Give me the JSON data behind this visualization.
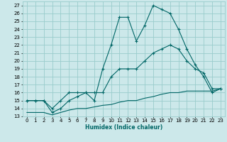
{
  "xlabel": "Humidex (Indice chaleur)",
  "bg_color": "#cce8ea",
  "grid_color": "#99cccc",
  "line_color": "#006666",
  "xlim": [
    -0.5,
    23.5
  ],
  "ylim": [
    13,
    27.5
  ],
  "yticks": [
    13,
    14,
    15,
    16,
    17,
    18,
    19,
    20,
    21,
    22,
    23,
    24,
    25,
    26,
    27
  ],
  "xticks": [
    0,
    1,
    2,
    3,
    4,
    5,
    6,
    7,
    8,
    9,
    10,
    11,
    12,
    13,
    14,
    15,
    16,
    17,
    18,
    19,
    20,
    21,
    22,
    23
  ],
  "line1_x": [
    0,
    1,
    2,
    3,
    4,
    5,
    6,
    7,
    8,
    9,
    10,
    11,
    12,
    13,
    14,
    15,
    16,
    17,
    18,
    19,
    20,
    21,
    22,
    23
  ],
  "line1_y": [
    15,
    15,
    15,
    14,
    15,
    16,
    16,
    16,
    15,
    19,
    22,
    25.5,
    25.5,
    22.5,
    24.5,
    27,
    26.5,
    26,
    24,
    21.5,
    19.5,
    18,
    16,
    16.5
  ],
  "line2_x": [
    0,
    1,
    2,
    3,
    4,
    5,
    6,
    7,
    8,
    9,
    10,
    11,
    12,
    13,
    14,
    15,
    16,
    17,
    18,
    19,
    20,
    21,
    22,
    23
  ],
  "line2_y": [
    15,
    15,
    15,
    13.5,
    14,
    15,
    15.5,
    16,
    16,
    16,
    18,
    19,
    19,
    19,
    20,
    21,
    21.5,
    22,
    21.5,
    20,
    19,
    18.5,
    16.5,
    16.5
  ],
  "line3_x": [
    0,
    1,
    2,
    3,
    4,
    5,
    6,
    7,
    8,
    9,
    10,
    11,
    12,
    13,
    14,
    15,
    16,
    17,
    18,
    19,
    20,
    21,
    22,
    23
  ],
  "line3_y": [
    13.5,
    13.5,
    13.5,
    13.2,
    13.5,
    13.8,
    14,
    14,
    14.2,
    14.4,
    14.5,
    14.8,
    15,
    15,
    15.3,
    15.5,
    15.8,
    16,
    16,
    16.2,
    16.2,
    16.2,
    16.2,
    16.5
  ]
}
